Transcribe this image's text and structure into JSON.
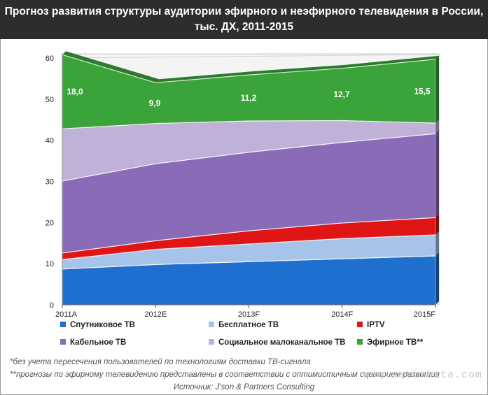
{
  "title": {
    "line1": "Прогноз развития структуры аудитории эфирного и неэфирного телевидения в России,",
    "line2": "тыс. ДХ, 2011-2015"
  },
  "chart_data": {
    "type": "area",
    "stacked": true,
    "categories": [
      "2011A",
      "2012E",
      "2013F",
      "2014F",
      "2015F"
    ],
    "yticks": [
      0,
      10,
      20,
      30,
      40,
      50,
      60
    ],
    "ylim": [
      0,
      60
    ],
    "series": [
      {
        "name": "Спутниковое ТВ",
        "color": "#1f6fce",
        "values": [
          8.7,
          9.8,
          10.5,
          11.2,
          11.9
        ]
      },
      {
        "name": "Бесплатное ТВ",
        "color": "#a6c3ea",
        "values": [
          2.3,
          3.7,
          4.3,
          4.9,
          5.1
        ]
      },
      {
        "name": "IPTV",
        "color": "#e01515",
        "values": [
          1.6,
          2.1,
          3.2,
          3.8,
          4.2
        ]
      },
      {
        "name": "Кабельное ТВ",
        "color": "#8a6bb8",
        "values": [
          17.5,
          18.7,
          19.1,
          19.6,
          20.4
        ]
      },
      {
        "name": "Социальное малоканальное ТВ",
        "color": "#c0b1d8",
        "values": [
          12.7,
          9.8,
          7.6,
          5.3,
          2.6
        ]
      },
      {
        "name": "Эфирное ТВ**",
        "color": "#3aa33a",
        "values": [
          18.0,
          9.9,
          11.2,
          12.7,
          15.5
        ]
      }
    ],
    "annotations": [
      "18,0",
      "9,9",
      "11,2",
      "12,7",
      "15,5"
    ],
    "legend_position": "bottom"
  },
  "footnotes": {
    "note1": "*без учета пересечения пользователей по технологиям доставки ТВ-сигнала",
    "note2": "**прогнозы по эфирному телевидению представлены в соответствии с оптимистичным сценарием развития"
  },
  "source": "Источник: J'son & Partners Consulting",
  "watermark": "www.satorbita.com"
}
